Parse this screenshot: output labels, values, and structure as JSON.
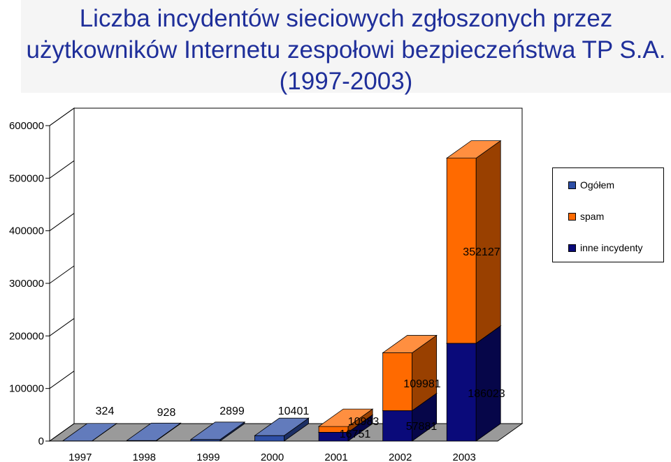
{
  "chart_data": {
    "type": "bar",
    "title": "Liczba incydentów sieciowych zgłoszonych przez użytkowników Internetu zespołowi bezpieczeństwa TP S.A. (1997-2003)",
    "categories": [
      "1997",
      "1998",
      "1999",
      "2000",
      "2001",
      "2002",
      "2003"
    ],
    "series": [
      {
        "name": "Ogółem",
        "values": [
          324,
          928,
          2899,
          10401,
          null,
          null,
          null
        ],
        "color": "#2e4fa6"
      },
      {
        "name": "spam",
        "values": [
          null,
          null,
          null,
          null,
          10983,
          109981,
          352127
        ],
        "color": "#ff6a00"
      },
      {
        "name": "inne incydenty",
        "values": [
          null,
          null,
          null,
          null,
          16751,
          57881,
          186023
        ],
        "color": "#0a0a7a"
      }
    ],
    "stacked": true,
    "three_d": true,
    "data_labels": [
      "324",
      "928",
      "2899",
      "10401",
      "10983",
      "16751",
      "109981",
      "57881",
      "352127",
      "186023"
    ],
    "yticks": [
      "0",
      "100000",
      "200000",
      "300000",
      "400000",
      "500000",
      "600000"
    ],
    "ylim": [
      0,
      600000
    ],
    "grid": false,
    "legend_position": "right"
  }
}
